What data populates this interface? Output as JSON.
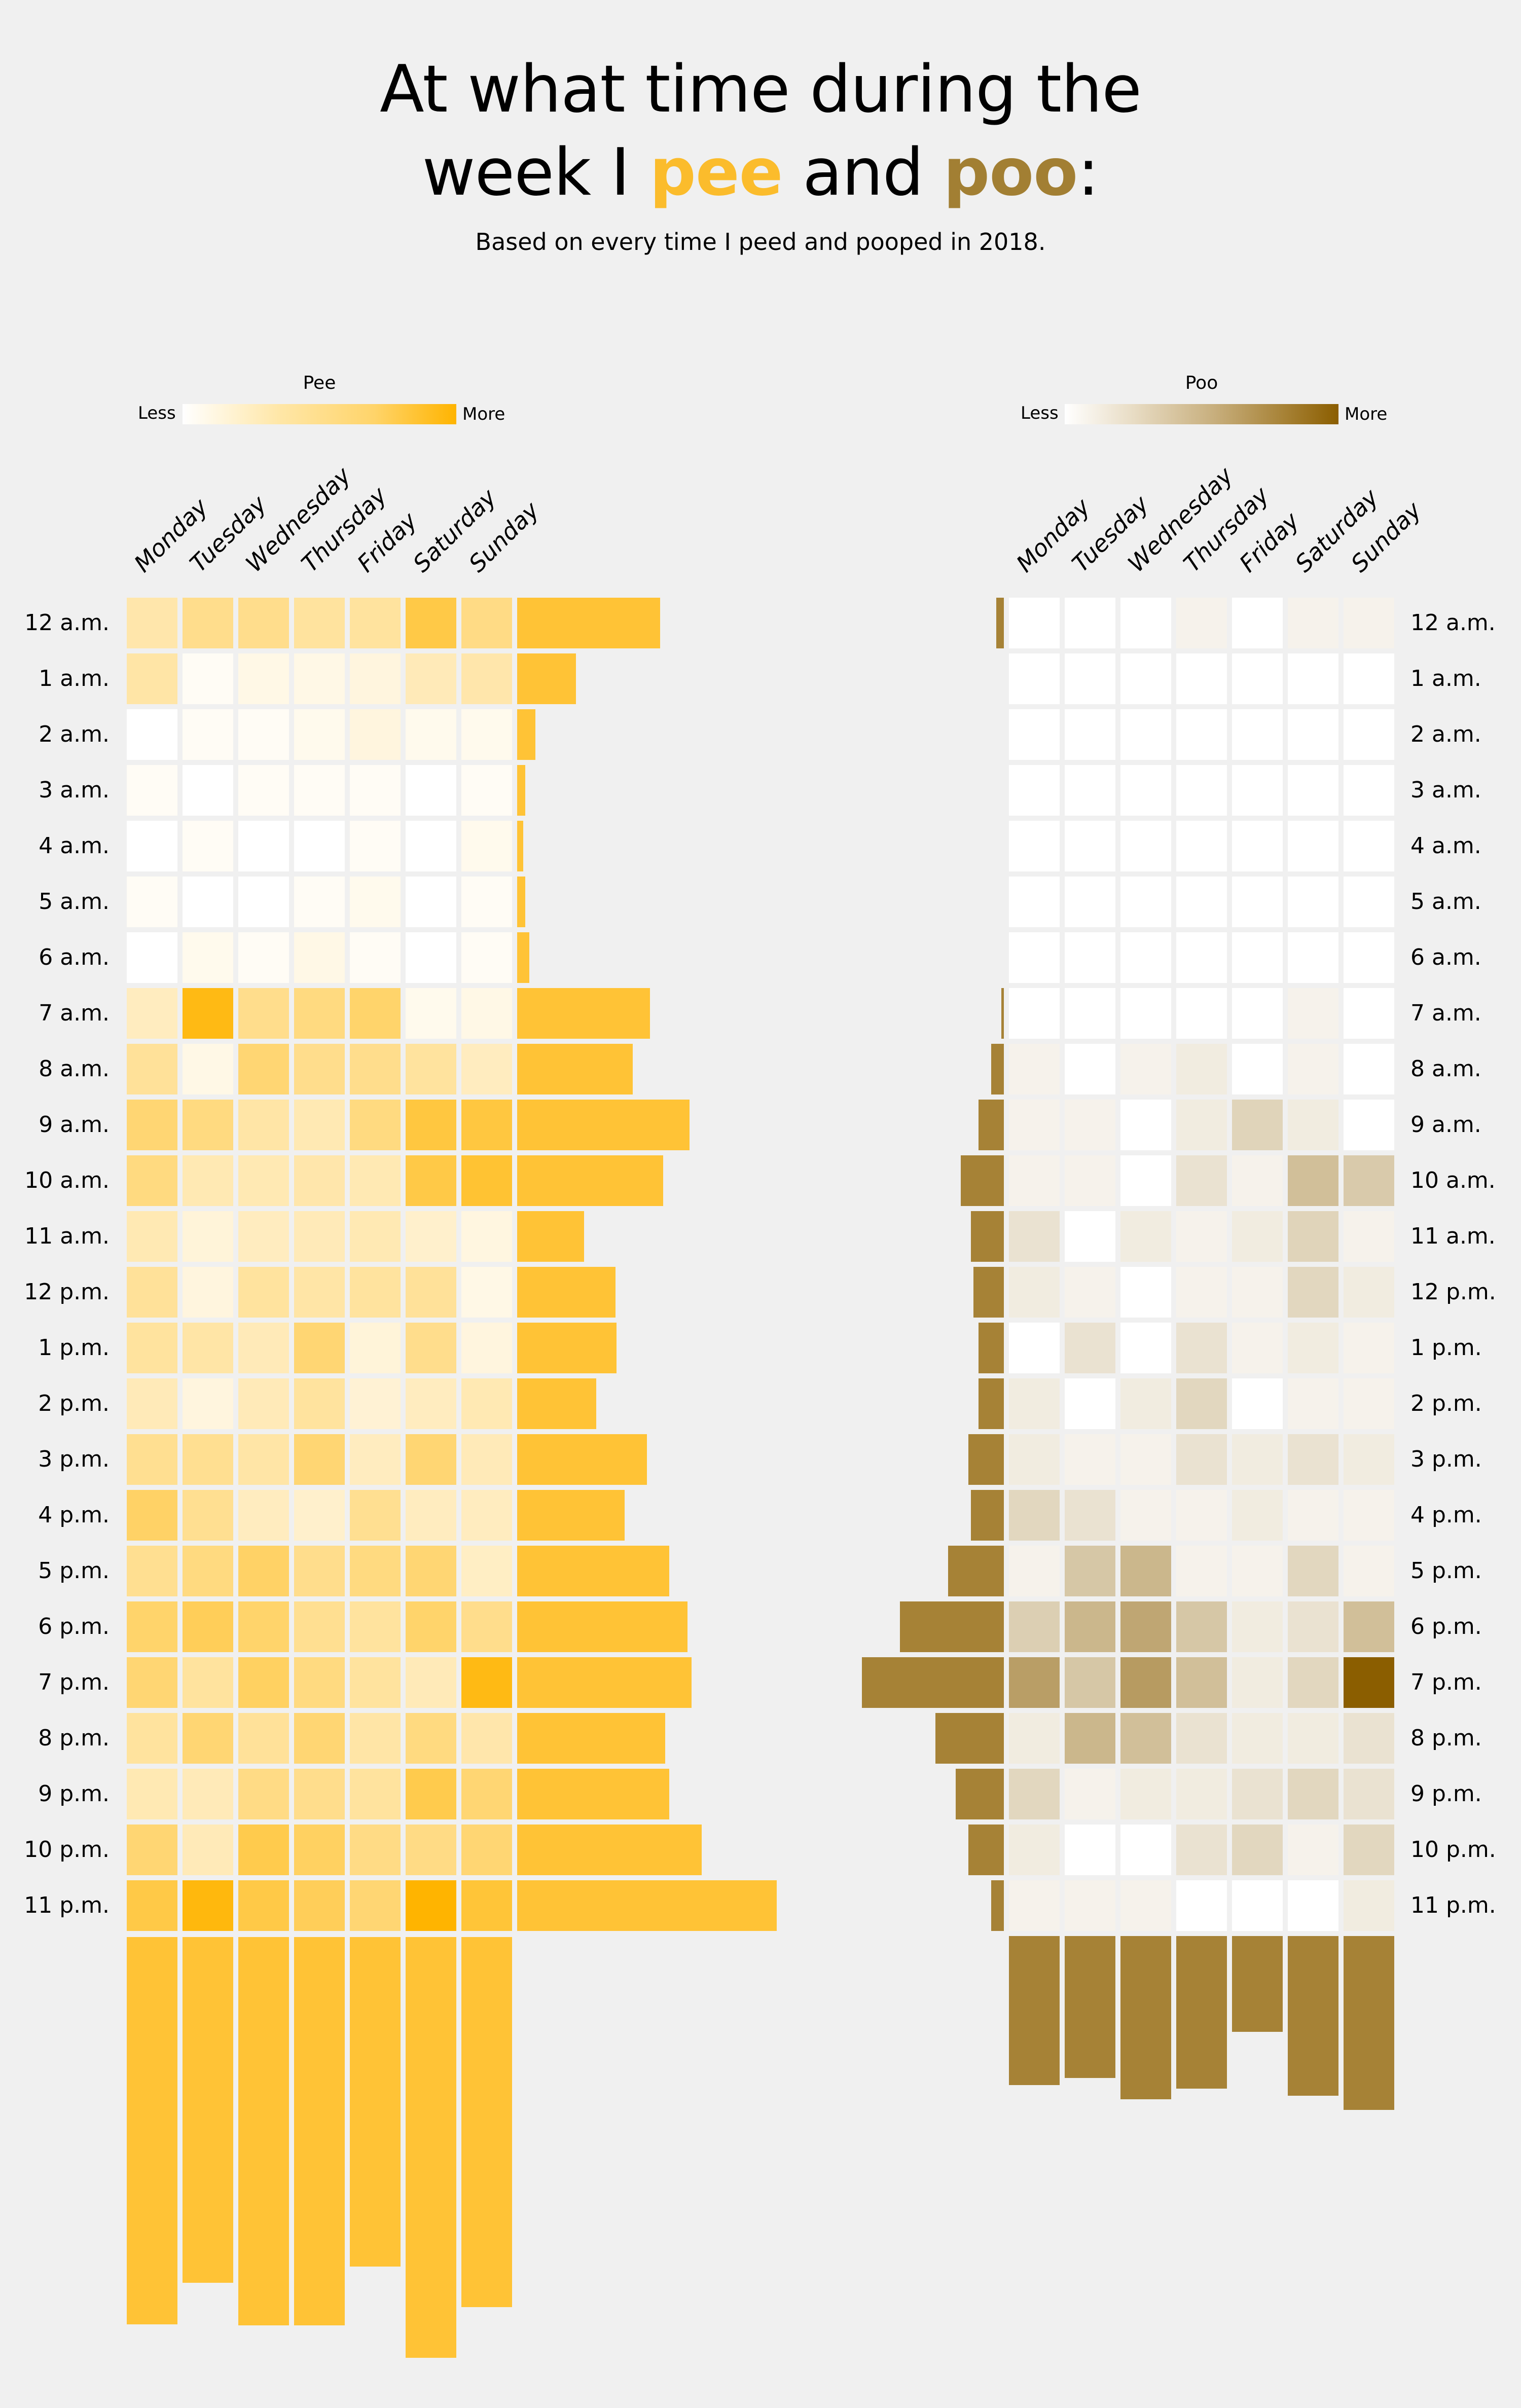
{
  "title": {
    "line1": "At what time during the",
    "line2_pre": "week I ",
    "pee": "pee",
    "mid": " and ",
    "poo": "poo",
    "end": ":"
  },
  "subtitle": "Based on every time I peed and pooped in 2018.",
  "colors": {
    "background": "#F0F0F0",
    "pee_max": "#FFB400",
    "pee_bar": "#FFC336",
    "poo_max": "#8B5E00",
    "poo_bar": "#A68236",
    "title_pee": "#FBBC2C",
    "title_poo": "#A27F33"
  },
  "chart_data": [
    {
      "type": "heatmap",
      "name": "Pee",
      "legend": {
        "title": "Pee",
        "less": "Less",
        "more": "More"
      },
      "days": [
        "Monday",
        "Tuesday",
        "Wednesday",
        "Thursday",
        "Friday",
        "Saturday",
        "Sunday"
      ],
      "hours": [
        "12 a.m.",
        "1 a.m.",
        "2 a.m.",
        "3 a.m.",
        "4 a.m.",
        "5 a.m.",
        "6 a.m.",
        "7 a.m.",
        "8 a.m.",
        "9 a.m.",
        "10 a.m.",
        "11 a.m.",
        "12 p.m.",
        "1 p.m.",
        "2 p.m.",
        "3 p.m.",
        "4 p.m.",
        "5 p.m.",
        "6 p.m.",
        "7 p.m.",
        "8 p.m.",
        "9 p.m.",
        "10 p.m.",
        "11 p.m."
      ],
      "intensity": [
        [
          0.33,
          0.45,
          0.45,
          0.38,
          0.38,
          0.72,
          0.48
        ],
        [
          0.35,
          0.04,
          0.1,
          0.1,
          0.13,
          0.28,
          0.33
        ],
        [
          0,
          0.04,
          0.04,
          0.07,
          0.13,
          0.07,
          0.07
        ],
        [
          0.04,
          0,
          0.04,
          0.04,
          0.04,
          0,
          0.04
        ],
        [
          0,
          0.04,
          0,
          0,
          0.04,
          0,
          0.07
        ],
        [
          0.04,
          0,
          0,
          0.04,
          0.07,
          0,
          0.04
        ],
        [
          0,
          0.07,
          0.04,
          0.1,
          0.04,
          0,
          0.04
        ],
        [
          0.25,
          0.92,
          0.45,
          0.5,
          0.58,
          0.07,
          0.1
        ],
        [
          0.4,
          0.1,
          0.55,
          0.45,
          0.45,
          0.38,
          0.25
        ],
        [
          0.55,
          0.5,
          0.35,
          0.3,
          0.5,
          0.75,
          0.75
        ],
        [
          0.5,
          0.3,
          0.3,
          0.33,
          0.3,
          0.72,
          0.8
        ],
        [
          0.3,
          0.15,
          0.25,
          0.28,
          0.3,
          0.2,
          0.12
        ],
        [
          0.4,
          0.13,
          0.38,
          0.35,
          0.38,
          0.4,
          0.1
        ],
        [
          0.38,
          0.35,
          0.28,
          0.55,
          0.15,
          0.45,
          0.13
        ],
        [
          0.28,
          0.13,
          0.28,
          0.38,
          0.17,
          0.25,
          0.3
        ],
        [
          0.43,
          0.43,
          0.35,
          0.55,
          0.25,
          0.55,
          0.28
        ],
        [
          0.6,
          0.43,
          0.25,
          0.2,
          0.43,
          0.25,
          0.25
        ],
        [
          0.43,
          0.5,
          0.6,
          0.45,
          0.5,
          0.55,
          0.23
        ],
        [
          0.58,
          0.65,
          0.58,
          0.43,
          0.38,
          0.58,
          0.45
        ],
        [
          0.55,
          0.38,
          0.62,
          0.5,
          0.38,
          0.28,
          0.92
        ],
        [
          0.38,
          0.55,
          0.4,
          0.55,
          0.35,
          0.5,
          0.33
        ],
        [
          0.3,
          0.28,
          0.48,
          0.45,
          0.38,
          0.7,
          0.55
        ],
        [
          0.55,
          0.28,
          0.7,
          0.62,
          0.48,
          0.48,
          0.55
        ],
        [
          0.72,
          0.95,
          0.72,
          0.65,
          0.55,
          1.0,
          0.78
        ]
      ],
      "hour_totals": [
        141,
        58,
        18,
        8,
        6,
        8,
        12,
        131,
        114,
        170,
        144,
        66,
        97,
        98,
        78,
        128,
        106,
        150,
        168,
        172,
        146,
        150,
        182,
        256
      ],
      "day_totals": [
        382,
        341,
        383,
        383,
        325,
        415,
        365
      ]
    },
    {
      "type": "heatmap",
      "name": "Poo",
      "legend": {
        "title": "Poo",
        "less": "Less",
        "more": "More"
      },
      "days": [
        "Monday",
        "Tuesday",
        "Wednesday",
        "Thursday",
        "Friday",
        "Saturday",
        "Sunday"
      ],
      "hours": [
        "12 a.m.",
        "1 a.m.",
        "2 a.m.",
        "3 a.m.",
        "4 a.m.",
        "5 a.m.",
        "6 a.m.",
        "7 a.m.",
        "8 a.m.",
        "9 a.m.",
        "10 a.m.",
        "11 a.m.",
        "12 p.m.",
        "1 p.m.",
        "2 p.m.",
        "3 p.m.",
        "4 p.m.",
        "5 p.m.",
        "6 p.m.",
        "7 p.m.",
        "8 p.m.",
        "9 p.m.",
        "10 p.m.",
        "11 p.m."
      ],
      "intensity": [
        [
          0,
          0,
          0,
          0.08,
          0,
          0.08,
          0.08
        ],
        [
          0,
          0,
          0,
          0,
          0,
          0,
          0
        ],
        [
          0,
          0,
          0,
          0,
          0,
          0,
          0
        ],
        [
          0,
          0,
          0,
          0,
          0,
          0,
          0
        ],
        [
          0,
          0,
          0,
          0,
          0,
          0,
          0
        ],
        [
          0,
          0,
          0,
          0,
          0,
          0,
          0
        ],
        [
          0,
          0,
          0,
          0,
          0,
          0,
          0
        ],
        [
          0,
          0,
          0,
          0,
          0,
          0.08,
          0
        ],
        [
          0.08,
          0,
          0.08,
          0.12,
          0,
          0.08,
          0
        ],
        [
          0.08,
          0.08,
          0,
          0.12,
          0.27,
          0.12,
          0
        ],
        [
          0.08,
          0.08,
          0,
          0.18,
          0.08,
          0.4,
          0.33
        ],
        [
          0.18,
          0,
          0.12,
          0.08,
          0.12,
          0.27,
          0.08
        ],
        [
          0.12,
          0.08,
          0,
          0.08,
          0.08,
          0.25,
          0.12
        ],
        [
          0,
          0.18,
          0,
          0.18,
          0.08,
          0.12,
          0.08
        ],
        [
          0.12,
          0,
          0.12,
          0.25,
          0,
          0.08,
          0.08
        ],
        [
          0.12,
          0.08,
          0.08,
          0.18,
          0.12,
          0.18,
          0.12
        ],
        [
          0.25,
          0.18,
          0.08,
          0.08,
          0.12,
          0.08,
          0.08
        ],
        [
          0.08,
          0.35,
          0.45,
          0.08,
          0.08,
          0.25,
          0.08
        ],
        [
          0.3,
          0.45,
          0.55,
          0.35,
          0.12,
          0.18,
          0.4
        ],
        [
          0.6,
          0.35,
          0.62,
          0.4,
          0.12,
          0.25,
          1.0
        ],
        [
          0.12,
          0.45,
          0.4,
          0.18,
          0.12,
          0.12,
          0.18
        ],
        [
          0.25,
          0.08,
          0.12,
          0.12,
          0.18,
          0.25,
          0.18
        ],
        [
          0.12,
          0,
          0,
          0.18,
          0.25,
          0.08,
          0.25
        ],
        [
          0.08,
          0.08,
          0.08,
          0,
          0,
          0,
          0.12
        ]
      ],
      "hour_totals": [
        3,
        0,
        0,
        0,
        0,
        0,
        0,
        1,
        5,
        10,
        17,
        13,
        12,
        10,
        10,
        14,
        13,
        22,
        41,
        56,
        27,
        19,
        14,
        5
      ],
      "day_totals": [
        42,
        40,
        46,
        43,
        27,
        45,
        49
      ]
    }
  ]
}
